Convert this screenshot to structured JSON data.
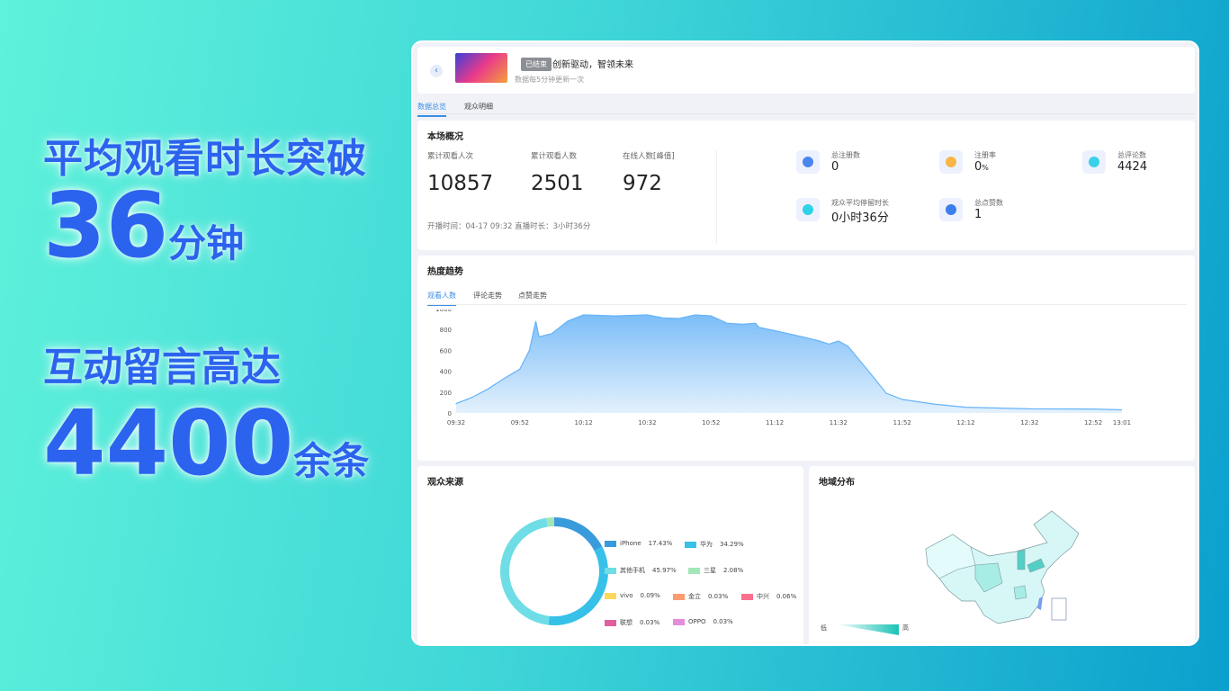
{
  "promo": {
    "line1": "平均观看时长突破",
    "num1": "36",
    "unit1": "分钟",
    "line2": "互动留言高达",
    "num2": "4400",
    "unit2": "余条"
  },
  "header": {
    "back_icon": "chevron-left-icon",
    "status": "已结束",
    "title": "创新驱动，智领未来",
    "subtitle": "数据每5分钟更新一次"
  },
  "tabs": [
    {
      "label": "数据总览",
      "active": true
    },
    {
      "label": "观众明细",
      "active": false
    }
  ],
  "overview": {
    "title": "本场概况",
    "stats": [
      {
        "label": "累计观看人次",
        "value": "10857"
      },
      {
        "label": "累计观看人数",
        "value": "2501"
      },
      {
        "label": "在线人数[峰值]",
        "value": "972"
      }
    ],
    "meta": "开播时间：04-17 09:32 直播时长：3小时36分",
    "kpis": [
      {
        "label": "总注册数",
        "value": "0",
        "unit": "",
        "icon": "user-icon",
        "color": "#4a86f0"
      },
      {
        "label": "注册率",
        "value": "0",
        "unit": "%",
        "icon": "pie-icon",
        "color": "#f8b548"
      },
      {
        "label": "总评论数",
        "value": "4424",
        "unit": "",
        "icon": "comment-icon",
        "color": "#3ad0ea"
      },
      {
        "label": "观众平均停留时长",
        "value": "0小时36分",
        "unit": "",
        "icon": "clock-icon",
        "color": "#2fd3e8"
      },
      {
        "label": "总点赞数",
        "value": "1",
        "unit": "",
        "icon": "heart-icon",
        "color": "#3b7eed"
      }
    ]
  },
  "trend": {
    "title": "热度趋势",
    "tabs": [
      {
        "label": "观看人数",
        "active": true
      },
      {
        "label": "评论走势",
        "active": false
      },
      {
        "label": "点赞走势",
        "active": false
      }
    ]
  },
  "chart_data": [
    {
      "type": "area",
      "x_ticks": [
        "09:32",
        "09:52",
        "10:12",
        "10:32",
        "10:52",
        "11:12",
        "11:32",
        "11:52",
        "12:12",
        "12:32",
        "12:52",
        "13:01"
      ],
      "y_ticks": [
        0,
        200,
        400,
        600,
        800,
        1000
      ],
      "ylim": [
        0,
        1000
      ],
      "grid": false,
      "color": "#66b3f7",
      "points": [
        [
          "09:32",
          90
        ],
        [
          "09:37",
          150
        ],
        [
          "09:42",
          230
        ],
        [
          "09:47",
          330
        ],
        [
          "09:52",
          420
        ],
        [
          "09:55",
          600
        ],
        [
          "09:57",
          880
        ],
        [
          "09:58",
          730
        ],
        [
          "10:02",
          760
        ],
        [
          "10:07",
          880
        ],
        [
          "10:12",
          940
        ],
        [
          "10:22",
          930
        ],
        [
          "10:32",
          940
        ],
        [
          "10:37",
          910
        ],
        [
          "10:42",
          905
        ],
        [
          "10:47",
          940
        ],
        [
          "10:52",
          930
        ],
        [
          "10:57",
          860
        ],
        [
          "11:02",
          850
        ],
        [
          "11:06",
          860
        ],
        [
          "11:07",
          820
        ],
        [
          "11:12",
          790
        ],
        [
          "11:22",
          720
        ],
        [
          "11:26",
          690
        ],
        [
          "11:29",
          660
        ],
        [
          "11:32",
          690
        ],
        [
          "11:35",
          640
        ],
        [
          "11:42",
          380
        ],
        [
          "11:47",
          190
        ],
        [
          "11:52",
          130
        ],
        [
          "12:02",
          85
        ],
        [
          "12:12",
          55
        ],
        [
          "12:32",
          40
        ],
        [
          "12:52",
          38
        ],
        [
          "13:01",
          30
        ]
      ]
    },
    {
      "type": "pie",
      "title": "观众来源",
      "donut": true,
      "slices": [
        {
          "name": "iPhone",
          "value": 17.43,
          "color": "#3a9bdc"
        },
        {
          "name": "华为",
          "value": 34.29,
          "color": "#37c1e8"
        },
        {
          "name": "其他手机",
          "value": 45.97,
          "color": "#6fdde6"
        },
        {
          "name": "三星",
          "value": 2.08,
          "color": "#a3e6b8"
        },
        {
          "name": "vivo",
          "value": 0.09,
          "color": "#fdd95b"
        },
        {
          "name": "金立",
          "value": 0.03,
          "color": "#fd9c72"
        },
        {
          "name": "中兴",
          "value": 0.06,
          "color": "#fb6f8e"
        },
        {
          "name": "联想",
          "value": 0.03,
          "color": "#e0609f"
        },
        {
          "name": "OPPO",
          "value": 0.03,
          "color": "#e38ddb"
        }
      ]
    }
  ],
  "geo": {
    "title": "地域分布",
    "low": "低",
    "high": "高"
  }
}
